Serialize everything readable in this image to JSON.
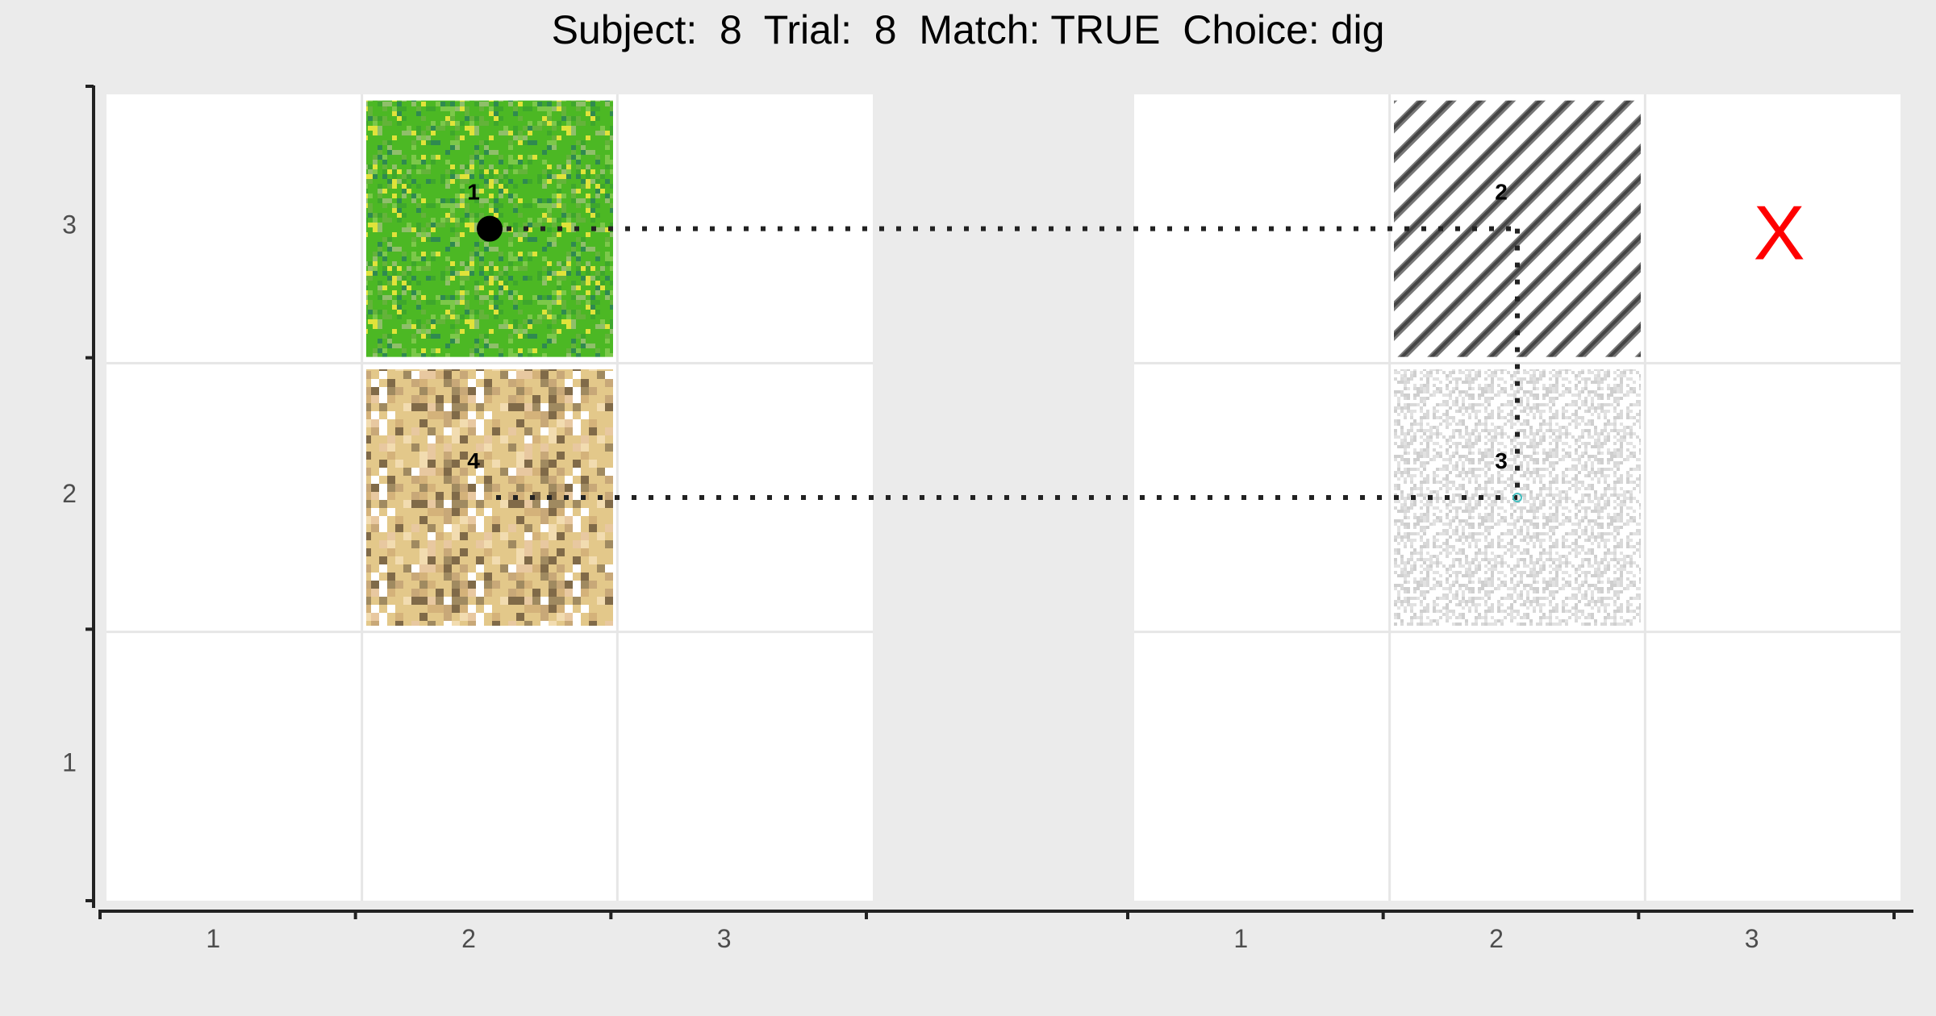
{
  "title": "Subject:  8  Trial:  8  Match: TRUE  Choice: dig",
  "colors": {
    "panel_bg": "#ffffff",
    "outer_bg": "#ebebeb",
    "grid": "#e6e6e6",
    "axis": "#222222",
    "grass": "#4cb824",
    "sand": "#e3c88a",
    "stripes_dark": "#777777",
    "noise_gray": "#d9d9d9",
    "path": "#222222",
    "marker": "#000000",
    "cross": "#ff0000",
    "end_dot": "#44bfc0"
  },
  "chart_data": {
    "type": "scatter",
    "title": "Subject:  8  Trial:  8  Match: TRUE  Choice: dig",
    "panels": [
      {
        "name": "left",
        "x_ticks": [
          "1",
          "2",
          "3"
        ],
        "y_ticks": [
          "1",
          "2",
          "3"
        ],
        "xlim": [
          0.5,
          3.5
        ],
        "ylim": [
          0.5,
          3.5
        ],
        "tiles": [
          {
            "label": "1",
            "x": 2,
            "y": 3,
            "texture": "grass"
          },
          {
            "label": "4",
            "x": 2,
            "y": 2,
            "texture": "sand"
          }
        ],
        "marker": {
          "x": 2,
          "y": 3
        }
      },
      {
        "name": "right",
        "x_ticks": [
          "1",
          "2",
          "3"
        ],
        "xlim": [
          0.5,
          3.5
        ],
        "ylim": [
          0.5,
          3.5
        ],
        "tiles": [
          {
            "label": "2",
            "x": 2,
            "y": 3,
            "texture": "stripes"
          },
          {
            "label": "3",
            "x": 2,
            "y": 2,
            "texture": "noise"
          }
        ],
        "cross": {
          "label": "X",
          "x": 3,
          "y": 3
        }
      }
    ],
    "path": [
      {
        "panel": "left",
        "x": 2,
        "y": 3
      },
      {
        "panel": "right",
        "x": 2,
        "y": 3
      },
      {
        "panel": "right",
        "x": 2,
        "y": 2
      },
      {
        "panel": "left",
        "x": 2,
        "y": 2
      }
    ],
    "grid": true
  }
}
